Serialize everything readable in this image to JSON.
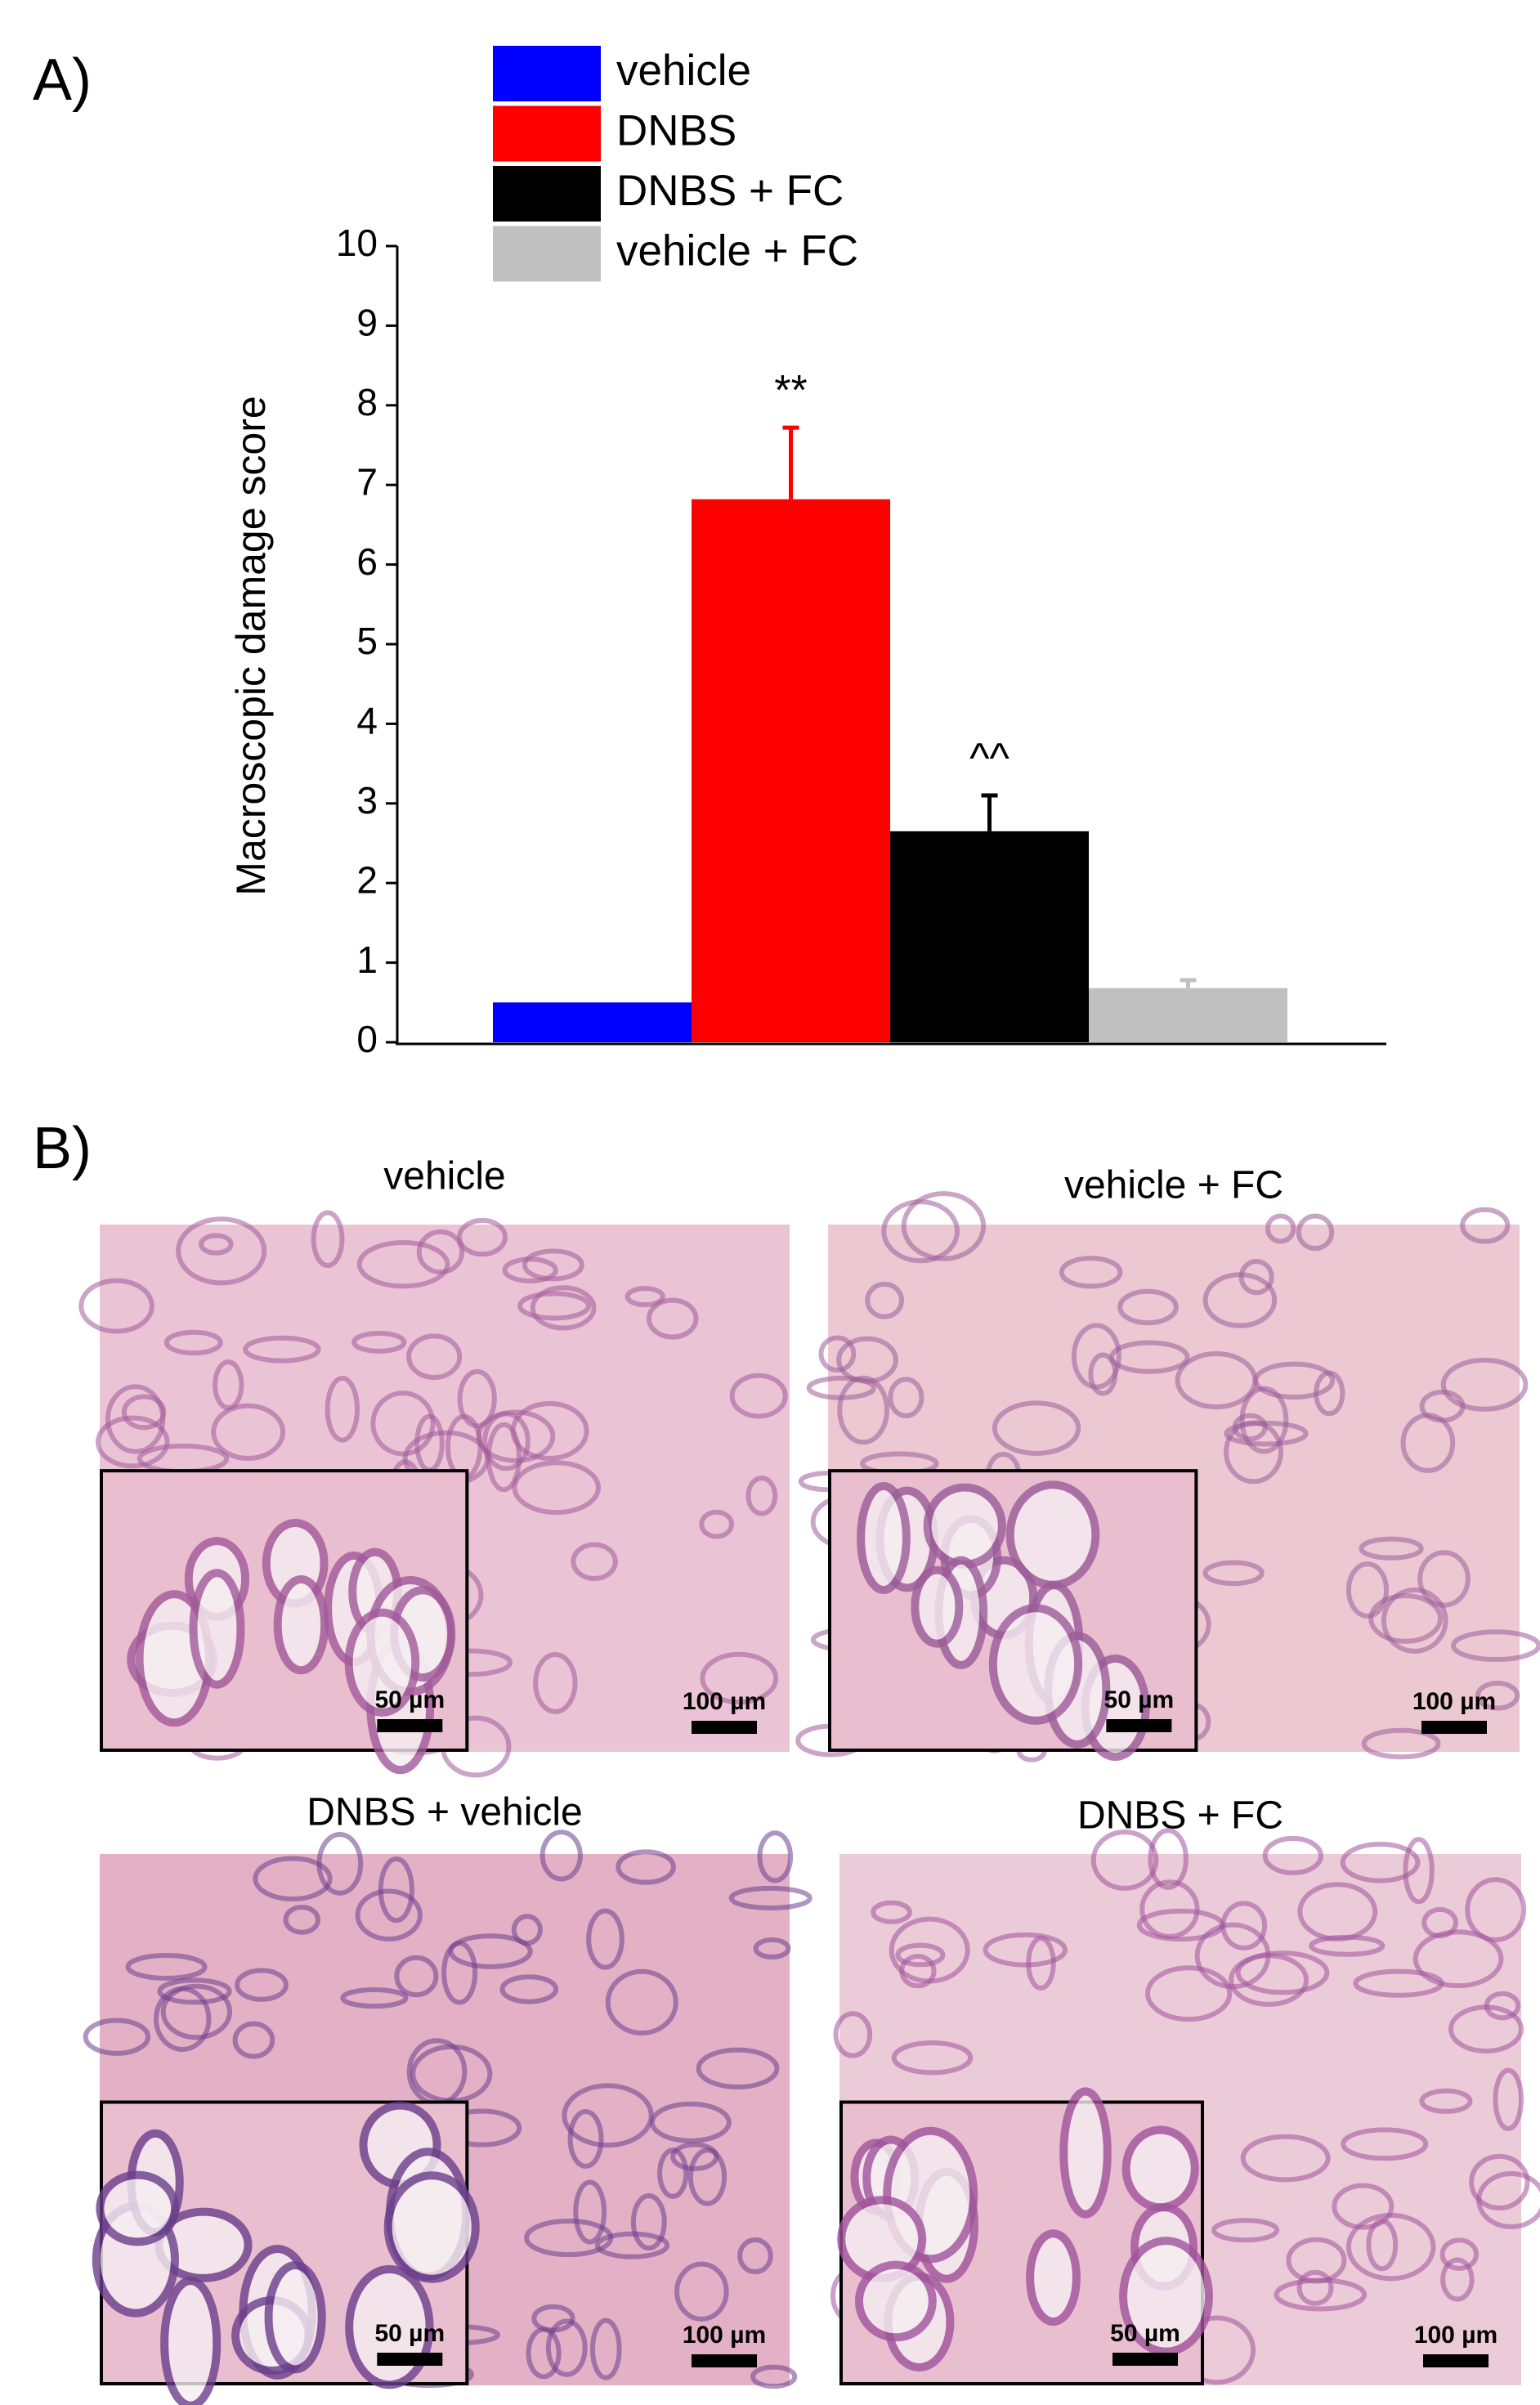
{
  "panel_a_label": "A)",
  "panel_b_label": "B)",
  "chart_data": {
    "type": "bar",
    "ylabel": "Macroscopic damage score",
    "ylim": [
      0,
      10
    ],
    "yticks": [
      0,
      1,
      2,
      3,
      4,
      5,
      6,
      7,
      8,
      9,
      10
    ],
    "series": [
      {
        "name": "vehicle",
        "color": "#0000ff",
        "values": [
          0.5
        ],
        "errors": [
          null
        ],
        "annotation": null
      },
      {
        "name": "DNBS",
        "color": "#ff0000",
        "values": [
          6.82
        ],
        "errors": [
          0.9
        ],
        "annotation": "**"
      },
      {
        "name": "DNBS + FC",
        "color": "#000000",
        "values": [
          2.65
        ],
        "errors": [
          0.45
        ],
        "annotation": "^^"
      },
      {
        "name": "vehicle + FC",
        "color": "#c0c0c0",
        "values": [
          0.68
        ],
        "errors": [
          0.1
        ],
        "annotation": null
      }
    ]
  },
  "panels": [
    {
      "title": "vehicle",
      "inset_scale": "50 µm",
      "scale": "100 µm"
    },
    {
      "title": "vehicle + FC",
      "inset_scale": "50 µm",
      "scale": "100 µm"
    },
    {
      "title": "DNBS + vehicle",
      "inset_scale": "50 µm",
      "scale": "100 µm"
    },
    {
      "title": "DNBS + FC",
      "inset_scale": "50 µm",
      "scale": "100 µm"
    }
  ]
}
